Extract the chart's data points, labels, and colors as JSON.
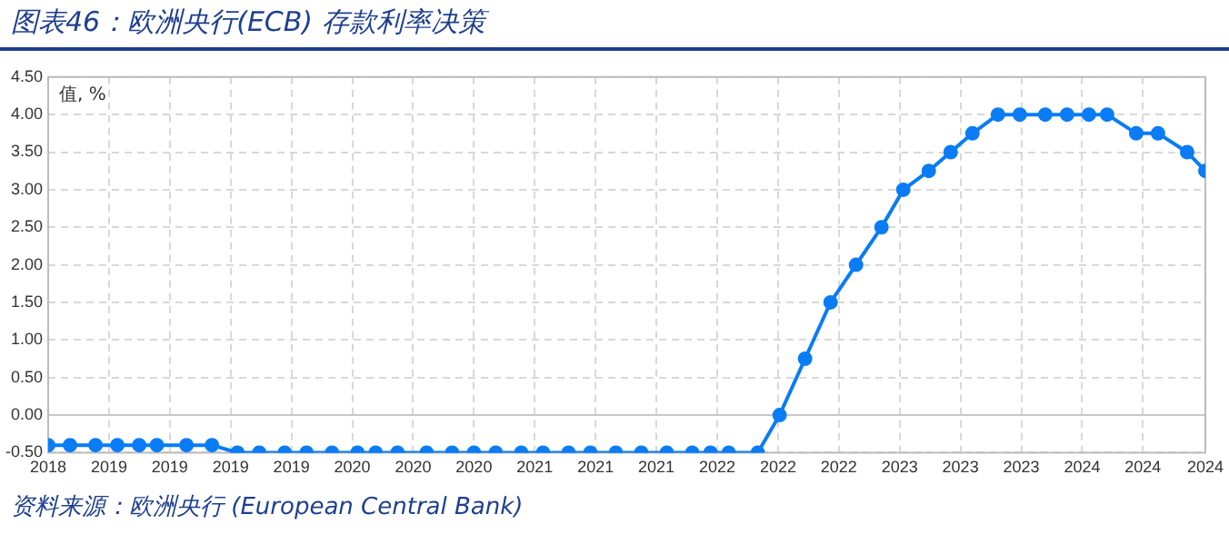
{
  "chart_data": {
    "type": "line",
    "title": "图表46：欧洲央行(ECB) 存款利率决策",
    "ylabel": "值, %",
    "annotations": [
      "资料来源：欧洲央行 (European Central Bank)"
    ],
    "xlim": [
      "2018-09-13",
      "2024-10-17"
    ],
    "xticks": [
      {
        "value": "2018-09-13",
        "label": "2018"
      },
      {
        "value": "2019-01-08",
        "label": "2019"
      },
      {
        "value": "2019-05-05",
        "label": "2019"
      },
      {
        "value": "2019-08-30",
        "label": "2019"
      },
      {
        "value": "2019-12-25",
        "label": "2019"
      },
      {
        "value": "2020-04-20",
        "label": "2020"
      },
      {
        "value": "2020-08-15",
        "label": "2020"
      },
      {
        "value": "2020-12-10",
        "label": "2020"
      },
      {
        "value": "2021-04-06",
        "label": "2021"
      },
      {
        "value": "2021-08-01",
        "label": "2021"
      },
      {
        "value": "2021-11-26",
        "label": "2021"
      },
      {
        "value": "2022-03-23",
        "label": "2022"
      },
      {
        "value": "2022-07-18",
        "label": "2022"
      },
      {
        "value": "2022-11-12",
        "label": "2022"
      },
      {
        "value": "2023-03-09",
        "label": "2023"
      },
      {
        "value": "2023-07-04",
        "label": "2023"
      },
      {
        "value": "2023-10-29",
        "label": "2023"
      },
      {
        "value": "2024-02-23",
        "label": "2024"
      },
      {
        "value": "2024-06-19",
        "label": "2024"
      },
      {
        "value": "2024-10-17",
        "label": "2024"
      }
    ],
    "ylim": [
      -0.5,
      4.5
    ],
    "yticks": [
      {
        "value": -0.5,
        "label": "-0.50"
      },
      {
        "value": 0,
        "label": "0.00"
      },
      {
        "value": 0.5,
        "label": "0.50"
      },
      {
        "value": 1,
        "label": "1.00"
      },
      {
        "value": 1.5,
        "label": "1.50"
      },
      {
        "value": 2,
        "label": "2.00"
      },
      {
        "value": 2.5,
        "label": "2.50"
      },
      {
        "value": 3,
        "label": "3.00"
      },
      {
        "value": 3.5,
        "label": "3.50"
      },
      {
        "value": 4,
        "label": "4.00"
      },
      {
        "value": 4.5,
        "label": "4.50"
      }
    ],
    "grid": true,
    "legend": false,
    "marker": "circle",
    "line_style": "solid",
    "ref_lines": [
      {
        "axis": "y",
        "value": 0,
        "color": "#c8c8c8"
      }
    ],
    "series": [
      {
        "color": "#0a7cf5",
        "x": [
          "2018-09-13",
          "2018-10-25",
          "2018-12-13",
          "2019-01-24",
          "2019-03-07",
          "2019-04-10",
          "2019-06-06",
          "2019-07-25",
          "2019-09-12",
          "2019-10-24",
          "2019-12-12",
          "2020-01-23",
          "2020-03-12",
          "2020-04-30",
          "2020-06-04",
          "2020-07-16",
          "2020-09-10",
          "2020-10-29",
          "2020-12-10",
          "2021-01-21",
          "2021-03-11",
          "2021-04-22",
          "2021-06-10",
          "2021-07-22",
          "2021-09-09",
          "2021-10-28",
          "2021-12-16",
          "2022-02-03",
          "2022-03-10",
          "2022-04-14",
          "2022-06-09",
          "2022-07-21",
          "2022-09-08",
          "2022-10-27",
          "2022-12-15",
          "2023-02-02",
          "2023-03-16",
          "2023-05-04",
          "2023-06-15",
          "2023-07-27",
          "2023-09-14",
          "2023-10-26",
          "2023-12-14",
          "2024-01-25",
          "2024-03-07",
          "2024-04-11",
          "2024-06-06",
          "2024-07-18",
          "2024-09-12",
          "2024-10-17"
        ],
        "values": [
          -0.4,
          -0.4,
          -0.4,
          -0.4,
          -0.4,
          -0.4,
          -0.4,
          -0.4,
          -0.5,
          -0.5,
          -0.5,
          -0.5,
          -0.5,
          -0.5,
          -0.5,
          -0.5,
          -0.5,
          -0.5,
          -0.5,
          -0.5,
          -0.5,
          -0.5,
          -0.5,
          -0.5,
          -0.5,
          -0.5,
          -0.5,
          -0.5,
          -0.5,
          -0.5,
          -0.5,
          0,
          0.75,
          1.5,
          2,
          2.5,
          3,
          3.25,
          3.5,
          3.75,
          4,
          4,
          4,
          4,
          4,
          4,
          3.75,
          3.75,
          3.5,
          3.25
        ]
      }
    ]
  }
}
